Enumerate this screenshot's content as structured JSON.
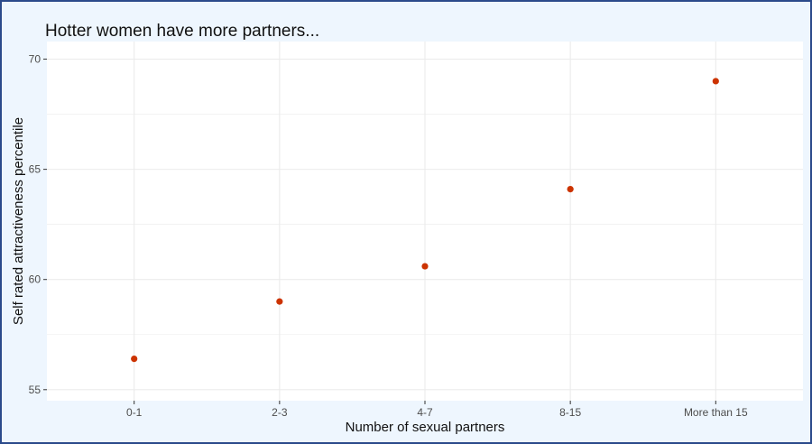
{
  "colors": {
    "frame_border": "#2b4a8b",
    "frame_background": "#eef6fe",
    "panel_background": "#ffffff",
    "grid": "#ebebeb",
    "point": "#cc3300"
  },
  "chart_data": {
    "type": "scatter",
    "title": "Hotter women have more partners...",
    "xlabel": "Number of sexual partners",
    "ylabel": "Self rated attractiveness percentile",
    "categories": [
      "0-1",
      "2-3",
      "4-7",
      "8-15",
      "More than 15"
    ],
    "values": [
      56.4,
      59.0,
      60.6,
      64.1,
      69.0
    ],
    "ylim": [
      54.5,
      70.8
    ],
    "yticks": [
      55,
      60,
      65,
      70
    ],
    "grid": true,
    "legend": "none"
  }
}
